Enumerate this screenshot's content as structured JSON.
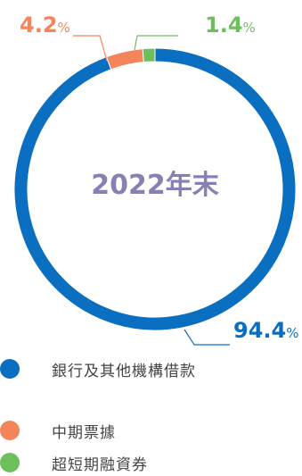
{
  "chart_data": {
    "type": "pie",
    "variant": "donut",
    "title": "2022年末",
    "slices": [
      {
        "label": "銀行及其他機構借款",
        "value": 94.4,
        "display_value": "94.4",
        "unit": "%",
        "color": "#0a6fc0"
      },
      {
        "label": "中期票據",
        "value": 4.2,
        "display_value": "4.2",
        "unit": "%",
        "color": "#f4845a"
      },
      {
        "label": "超短期融資券",
        "value": 1.4,
        "display_value": "1.4",
        "unit": "%",
        "color": "#6cbf5b"
      }
    ],
    "legend_position": "bottom-left"
  },
  "colors": {
    "center_text": "#8a7fb3",
    "label_orange": "#f4845a",
    "label_green": "#6cbf5b",
    "label_blue": "#0a6fc0"
  }
}
